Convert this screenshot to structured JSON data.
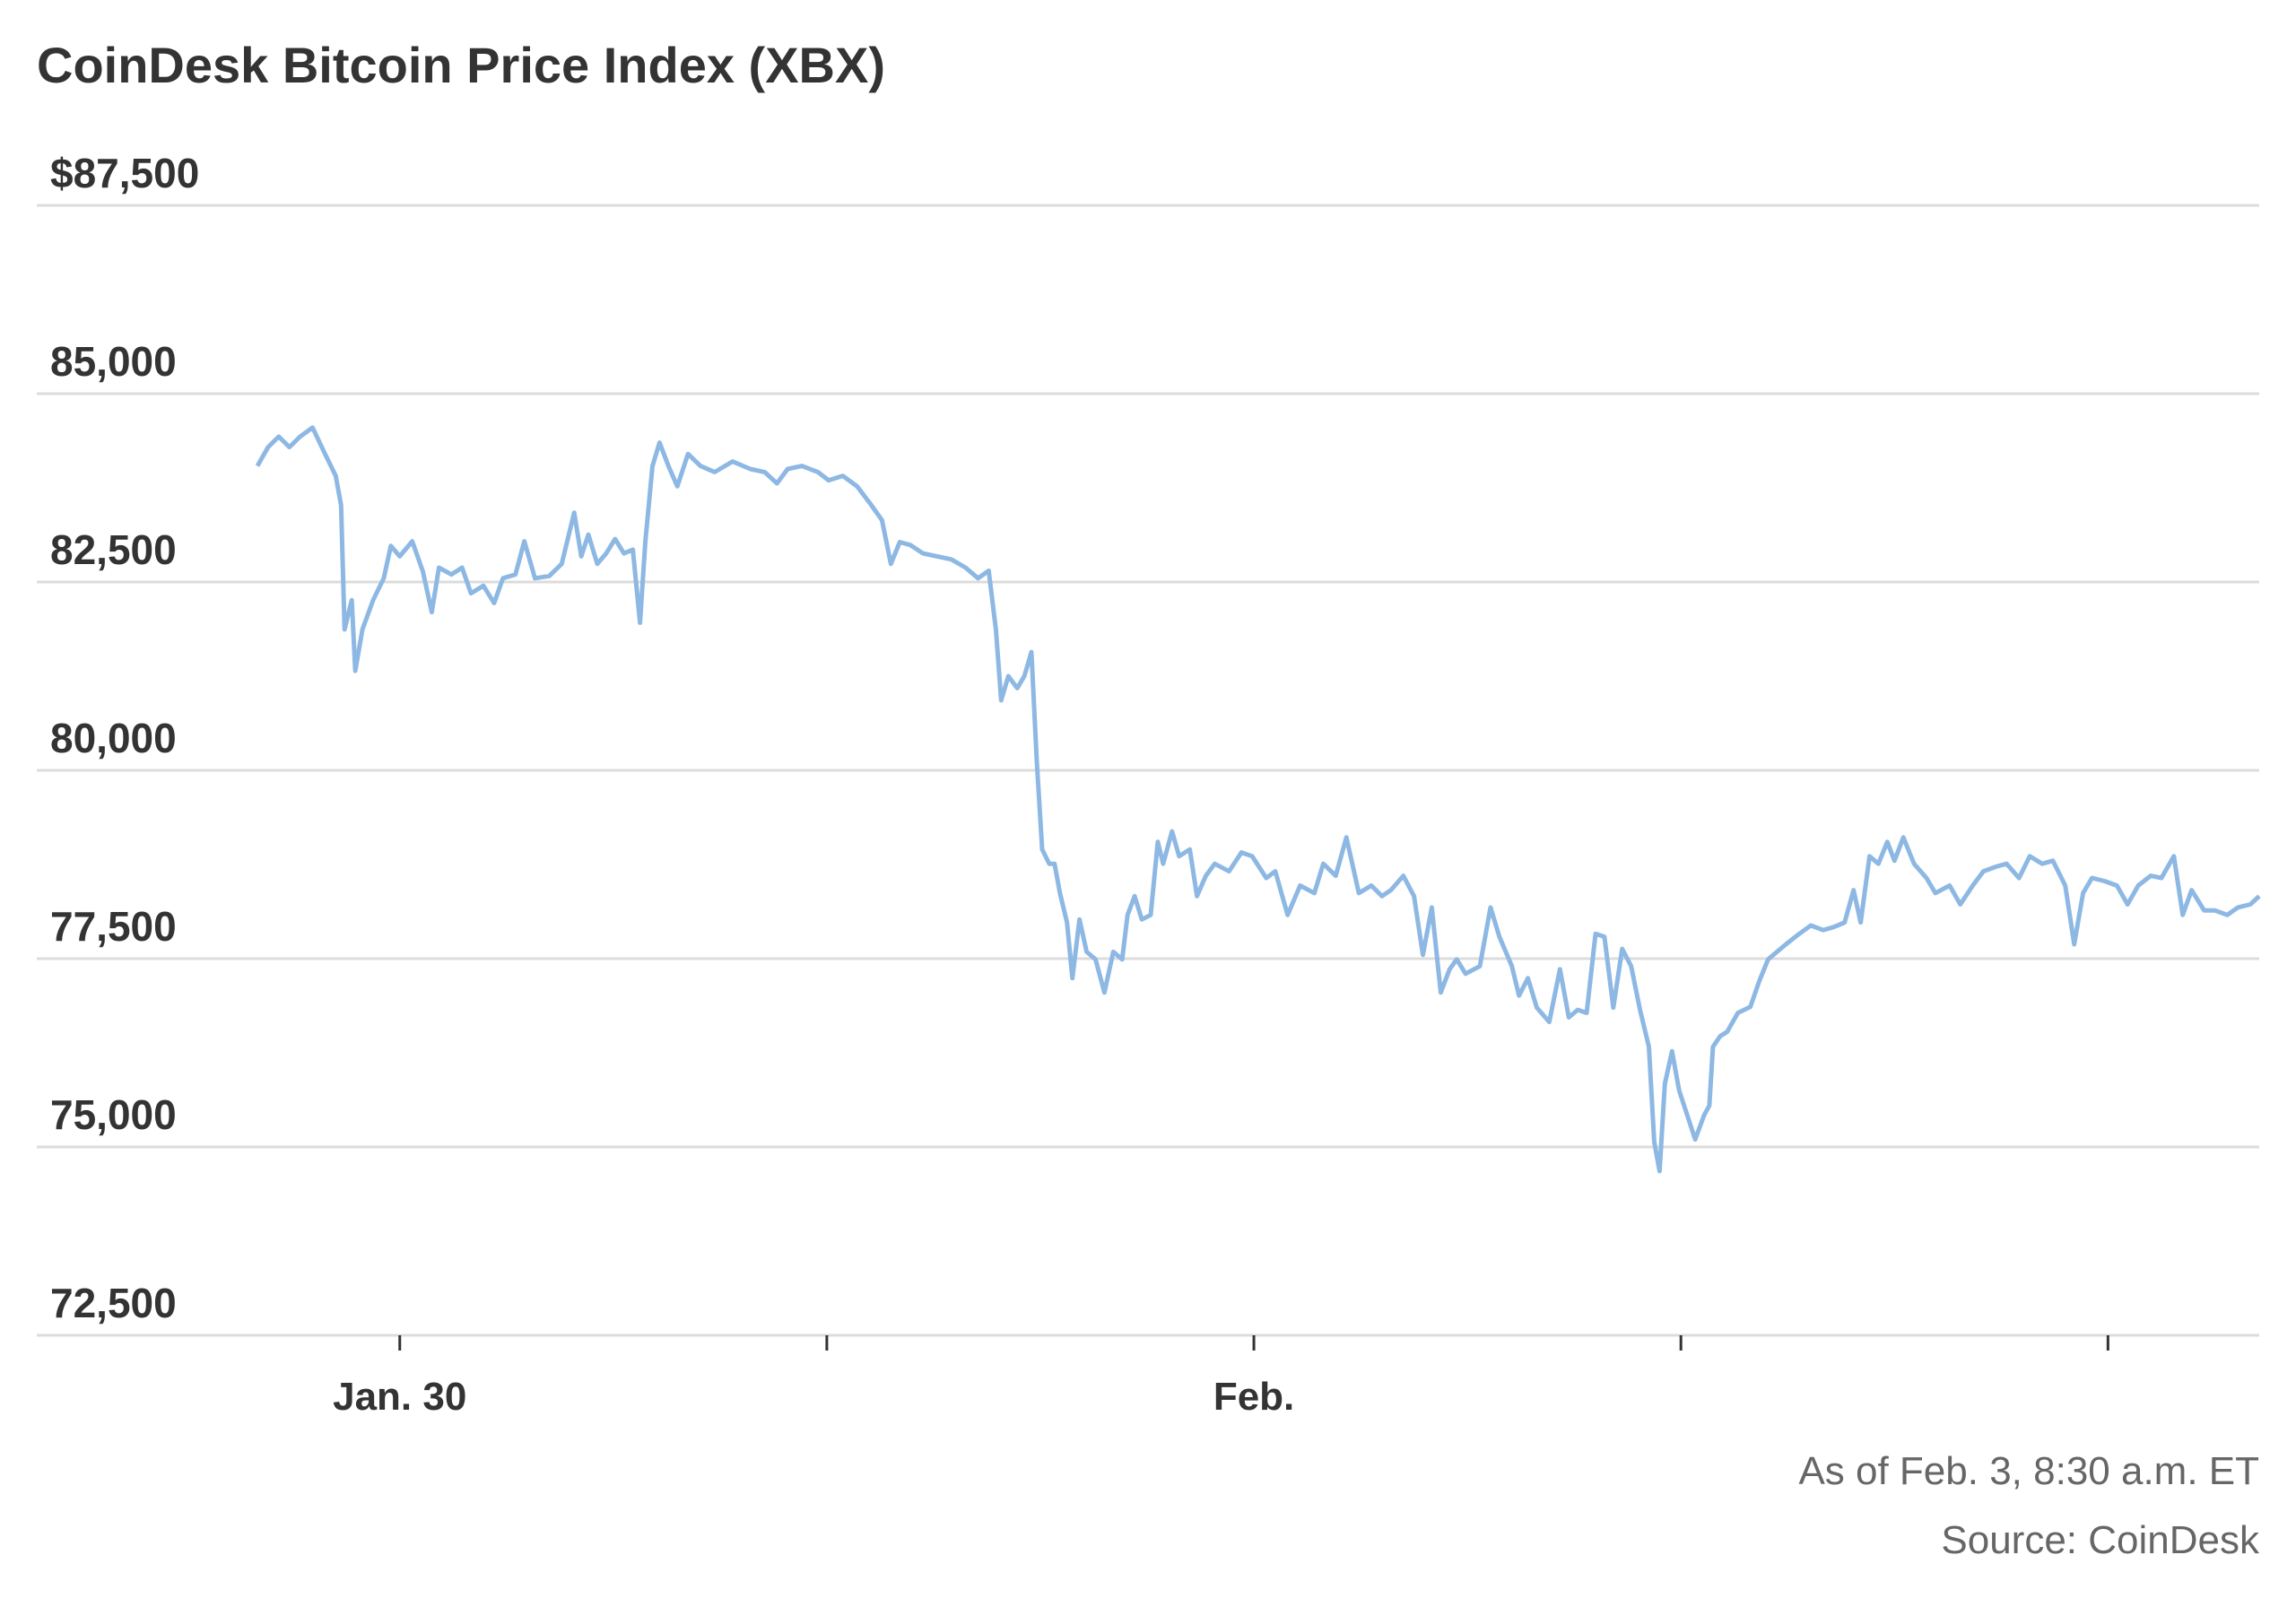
{
  "chart_data": {
    "type": "line",
    "title": "CoinDesk Bitcoin Price Index (XBX)",
    "note": "As of Feb. 3, 8:30 a.m. ET",
    "source": "Source: CoinDesk",
    "grid": true,
    "xlim": [
      -20.4,
      104.5
    ],
    "xticks": [
      {
        "value": 0,
        "label": "Jan. 30"
      },
      {
        "value": 24
      },
      {
        "value": 48,
        "label": "Feb."
      },
      {
        "value": 72
      },
      {
        "value": 96
      }
    ],
    "ylim": [
      72500,
      87500
    ],
    "yticks": [
      {
        "value": 72500,
        "label": "72,500"
      },
      {
        "value": 75000,
        "label": "75,000"
      },
      {
        "value": 77500,
        "label": "77,500"
      },
      {
        "value": 80000,
        "label": "80,000"
      },
      {
        "value": 82500,
        "label": "82,500"
      },
      {
        "value": 85000,
        "label": "85,000"
      },
      {
        "value": 87500,
        "label": "$87,500"
      }
    ],
    "x": [
      -8.0,
      -7.4,
      -6.8,
      -6.2,
      -5.6,
      -4.9,
      -4.2,
      -3.6,
      -3.3,
      -3.1,
      -2.7,
      -2.5,
      -2.1,
      -1.5,
      -0.9,
      -0.5,
      0,
      0.7,
      1.3,
      1.8,
      2.2,
      2.9,
      3.5,
      4.0,
      4.7,
      5.3,
      5.8,
      6.5,
      7.0,
      7.6,
      8.4,
      9.1,
      9.8,
      10.2,
      10.6,
      11.1,
      11.6,
      12.1,
      12.6,
      13.1,
      13.5,
      13.8,
      14.2,
      14.6,
      15.1,
      15.6,
      16.2,
      16.9,
      17.7,
      18.7,
      19.7,
      20.5,
      21.2,
      21.8,
      22.6,
      23.5,
      24.1,
      24.9,
      25.7,
      26.5,
      27.1,
      27.6,
      28.1,
      28.7,
      29.4,
      30.2,
      31.0,
      31.8,
      32.5,
      33.1,
      33.5,
      33.8,
      34.2,
      34.7,
      35.1,
      35.5,
      35.8,
      36.1,
      36.5,
      36.8,
      37.1,
      37.5,
      37.8,
      38.2,
      38.6,
      39.1,
      39.6,
      40.1,
      40.6,
      40.9,
      41.3,
      41.7,
      42.2,
      42.6,
      42.9,
      43.4,
      43.8,
      44.4,
      44.8,
      45.3,
      45.8,
      46.6,
      47.3,
      47.9,
      48.7,
      49.2,
      49.9,
      50.6,
      51.4,
      51.9,
      52.6,
      53.2,
      53.9,
      54.6,
      55.2,
      55.7,
      56.4,
      57.0,
      57.5,
      58.0,
      58.5,
      59.0,
      59.4,
      59.9,
      60.7,
      61.3,
      61.8,
      62.5,
      62.9,
      63.4,
      63.9,
      64.6,
      65.2,
      65.7,
      66.2,
      66.7,
      67.2,
      67.7,
      68.2,
      68.7,
      69.2,
      69.7,
      70.2,
      70.5,
      70.8,
      71.1,
      71.5,
      71.9,
      72.3,
      72.8,
      73.3,
      73.6,
      73.8,
      74.2,
      74.6,
      75.2,
      75.9,
      76.4,
      76.9,
      77.4,
      77.9,
      78.6,
      79.3,
      80.0,
      80.6,
      81.2,
      81.7,
      82.1,
      82.6,
      83.1,
      83.6,
      84.0,
      84.5,
      85.1,
      85.8,
      86.3,
      87.1,
      87.7,
      88.4,
      89.0,
      89.7,
      90.3,
      91.0,
      91.6,
      92.3,
      92.9,
      93.6,
      94.1,
      94.6,
      95.1,
      95.8,
      96.5,
      97.1,
      97.7,
      98.4,
      99.0,
      99.7,
      100.2,
      100.7,
      101.4,
      102.0,
      102.7,
      103.3,
      104.0,
      104.5
    ],
    "series": [
      {
        "color": "#8db8e3",
        "values": [
          84040,
          84290,
          84430,
          84290,
          84430,
          84550,
          84200,
          83910,
          83520,
          81870,
          82260,
          81320,
          81870,
          82260,
          82550,
          82980,
          82840,
          83040,
          82640,
          82100,
          82690,
          82600,
          82690,
          82350,
          82450,
          82220,
          82550,
          82600,
          83040,
          82550,
          82580,
          82740,
          83420,
          82840,
          83130,
          82740,
          82880,
          83070,
          82880,
          82930,
          81960,
          83030,
          84040,
          84350,
          84040,
          83770,
          84200,
          84040,
          83960,
          84100,
          84000,
          83960,
          83810,
          84000,
          84040,
          83960,
          83850,
          83910,
          83770,
          83520,
          83320,
          82740,
          83030,
          82990,
          82880,
          82840,
          82800,
          82690,
          82550,
          82650,
          81870,
          80930,
          81250,
          81090,
          81250,
          81570,
          80120,
          78950,
          78760,
          78760,
          78370,
          77980,
          77240,
          78020,
          77590,
          77490,
          77050,
          77590,
          77490,
          78080,
          78330,
          78020,
          78080,
          79050,
          78760,
          79190,
          78860,
          78950,
          78330,
          78600,
          78760,
          78660,
          78910,
          78860,
          78570,
          78660,
          78080,
          78470,
          78370,
          78760,
          78600,
          79110,
          78370,
          78470,
          78330,
          78410,
          78600,
          78330,
          77550,
          78180,
          77050,
          77360,
          77490,
          77300,
          77400,
          78180,
          77790,
          77400,
          77010,
          77240,
          76850,
          76660,
          77360,
          76720,
          76820,
          76780,
          77830,
          77790,
          76850,
          77630,
          77400,
          76820,
          76330,
          75070,
          74680,
          75840,
          76270,
          75750,
          75460,
          75100,
          75420,
          75550,
          76330,
          76470,
          76530,
          76780,
          76860,
          77200,
          77490,
          77590,
          77690,
          77820,
          77940,
          77880,
          77920,
          77980,
          78410,
          77980,
          78860,
          78760,
          79050,
          78800,
          79110,
          78760,
          78570,
          78370,
          78470,
          78220,
          78470,
          78660,
          78720,
          78760,
          78570,
          78860,
          78760,
          78800,
          78470,
          77690,
          78370,
          78570,
          78530,
          78470,
          78220,
          78470,
          78600,
          78570,
          78860,
          78080,
          78410,
          78140,
          78140,
          78080,
          78180,
          78220,
          78330
        ]
      }
    ]
  }
}
